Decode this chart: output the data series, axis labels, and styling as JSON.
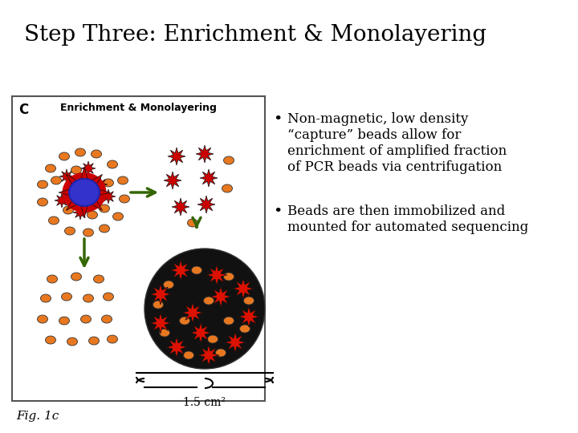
{
  "title": "Step Three: Enrichment & Monolayering",
  "title_fontsize": 20,
  "background_color": "#ffffff",
  "fig_label": "C",
  "fig_subtitle": "Enrichment & Monolayering",
  "fig_caption": "Fig. 1c",
  "fig_annotation": "1.5 cm²",
  "bullet1_line1": "Non-magnetic, low density",
  "bullet1_line2": "“capture” beads allow for",
  "bullet1_line3": "enrichment of amplified fraction",
  "bullet1_line4": "of PCR beads via centrifugation",
  "bullet2_line1": "Beads are then immobilized and",
  "bullet2_line2": "mounted for automated sequencing",
  "bullet_fontsize": 12,
  "orange_bead_color": "#E87820",
  "red_star_color": "#CC0000",
  "blue_bead_color": "#3333CC",
  "green_arrow_color": "#336600",
  "text_color": "#000000"
}
